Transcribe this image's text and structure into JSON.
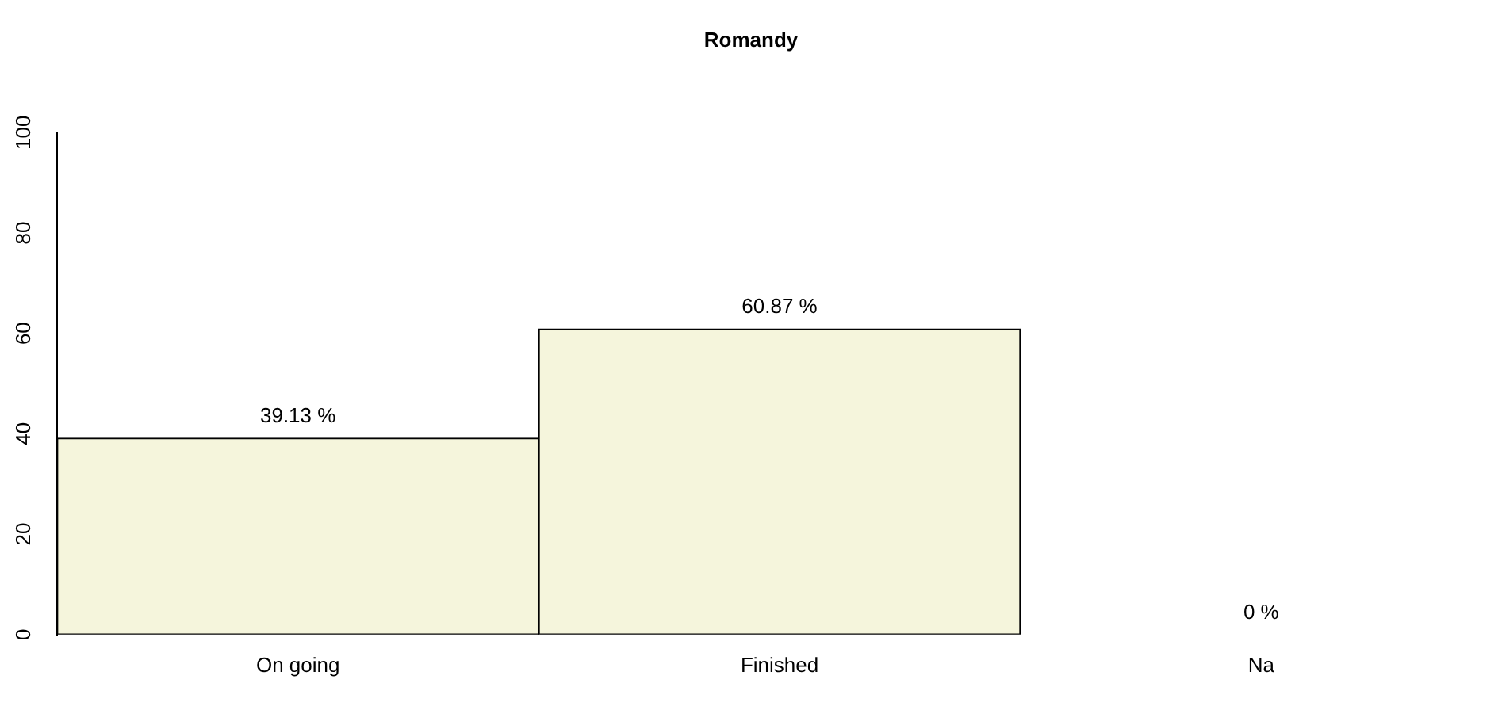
{
  "chart_data": {
    "type": "bar",
    "title": "Romandy",
    "categories": [
      "On going",
      "Finished",
      "Na"
    ],
    "values": [
      39.13,
      60.87,
      0
    ],
    "value_labels": [
      "39.13 %",
      "60.87 %",
      "0 %"
    ],
    "color": "#f5f5dc",
    "ylim": [
      0,
      100
    ],
    "yticks": [
      0,
      20,
      40,
      60,
      80,
      100
    ],
    "grid": false,
    "legend": false
  }
}
